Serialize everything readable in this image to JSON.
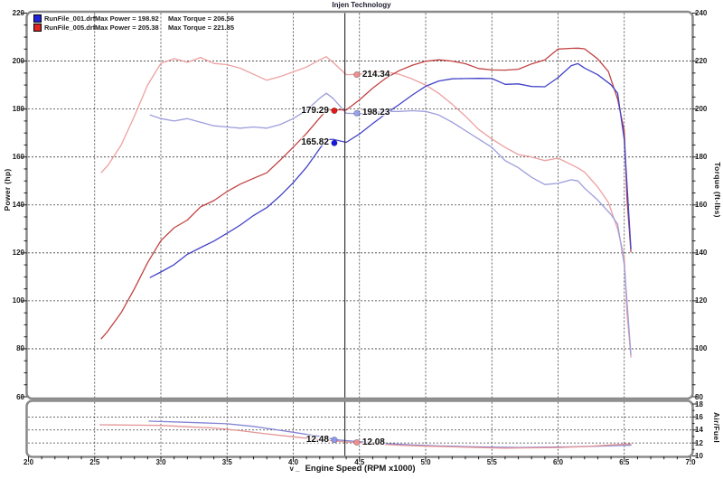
{
  "header": {
    "title": "Injen Technology"
  },
  "legend": {
    "items": [
      {
        "file": "RunFile_001.drf",
        "power_label": "Max Power = 198.92",
        "torque_label": "Max Torque = 206.56",
        "color": "#2222dd"
      },
      {
        "file": "RunFile_005.drf",
        "power_label": "Max Power = 205.38",
        "torque_label": "Max Torque = 221.85",
        "color": "#dd2222"
      }
    ]
  },
  "axes": {
    "power_title": "Power (hp)",
    "torque_title": "Torque (ft-lbs)",
    "af_title": "Air/Fuel",
    "x_title": "Engine Speed (RPM x1000)",
    "x_prefix": "v _",
    "power_ticks": [
      "220",
      "200",
      "180",
      "160",
      "140",
      "120",
      "100",
      "80",
      "60"
    ],
    "torque_ticks": [
      "240",
      "220",
      "200",
      "180",
      "160",
      "140",
      "120",
      "100",
      "80"
    ],
    "af_ticks": [
      "18",
      "16",
      "14",
      "12",
      "10"
    ],
    "x_ticks": [
      "2.0",
      "2.5",
      "3.0",
      "3.5",
      "4.0",
      "4.5",
      "5.0",
      "5.5",
      "6.0",
      "6.5",
      "7.0"
    ]
  },
  "cursor": {
    "rpm": 4.39
  },
  "annotations": [
    {
      "label": "214.34",
      "axis": "torque",
      "value": 214.34,
      "dot_rpm": 4.48,
      "side": "right",
      "dot_color": "#f09090"
    },
    {
      "label": "198.23",
      "axis": "torque",
      "value": 198.23,
      "dot_rpm": 4.48,
      "side": "right",
      "dot_color": "#98a2ef"
    },
    {
      "label": "179.29",
      "axis": "power",
      "value": 179.29,
      "dot_rpm": 4.31,
      "side": "left",
      "dot_color": "#e01818"
    },
    {
      "label": "165.82",
      "axis": "power",
      "value": 165.82,
      "dot_rpm": 4.31,
      "side": "left",
      "dot_color": "#1818e0"
    },
    {
      "label": "12.48",
      "axis": "af",
      "value": 12.48,
      "dot_rpm": 4.31,
      "side": "left",
      "dot_color": "#8f99ea"
    },
    {
      "label": "12.08",
      "axis": "af",
      "value": 12.08,
      "dot_rpm": 4.48,
      "side": "right",
      "dot_color": "#ef9090"
    }
  ],
  "chart_data": [
    {
      "type": "line",
      "title": "Injen Technology",
      "xlabel": "Engine Speed (RPM x1000)",
      "ylabel_left": "Power (hp)",
      "ylabel_right": "Torque (ft-lbs)",
      "xlim": [
        2.0,
        7.0
      ],
      "ylim_left": [
        60,
        220
      ],
      "ylim_right": [
        80,
        240
      ],
      "grid": true,
      "legend_position": "top-left",
      "series": [
        {
          "name": "RunFile_005.drf Torque",
          "axis": "torque",
          "color": "#eda0a0",
          "x": [
            2.55,
            2.6,
            2.7,
            2.8,
            2.9,
            3.0,
            3.1,
            3.2,
            3.3,
            3.4,
            3.5,
            3.6,
            3.7,
            3.8,
            3.9,
            4.0,
            4.1,
            4.2,
            4.25,
            4.3,
            4.4,
            4.5,
            4.6,
            4.7,
            4.8,
            4.9,
            5.0,
            5.1,
            5.2,
            5.3,
            5.4,
            5.5,
            5.6,
            5.7,
            5.8,
            5.9,
            6.0,
            6.1,
            6.15,
            6.2,
            6.3,
            6.38,
            6.45,
            6.5,
            6.52,
            6.55
          ],
          "y": [
            173.5,
            176.5,
            185,
            197,
            210,
            219,
            221,
            219.5,
            221.5,
            219,
            218.5,
            217,
            214.5,
            212,
            213.5,
            215.5,
            217.5,
            220.5,
            221.85,
            219.5,
            214.34,
            214.5,
            215.5,
            215.5,
            214.5,
            212.5,
            210,
            206.5,
            202,
            197,
            191.5,
            187.5,
            184,
            181,
            180,
            178.5,
            179.5,
            176.8,
            175.4,
            173.7,
            167.5,
            161,
            150,
            138,
            115,
            96.5
          ]
        },
        {
          "name": "RunFile_005.drf Power",
          "axis": "power",
          "color": "#c24343",
          "x": [
            2.55,
            2.6,
            2.7,
            2.8,
            2.9,
            3.0,
            3.1,
            3.2,
            3.3,
            3.4,
            3.5,
            3.6,
            3.7,
            3.8,
            3.9,
            4.0,
            4.1,
            4.2,
            4.25,
            4.3,
            4.4,
            4.5,
            4.6,
            4.7,
            4.8,
            4.9,
            5.0,
            5.1,
            5.2,
            5.3,
            5.4,
            5.5,
            5.6,
            5.7,
            5.8,
            5.9,
            6.0,
            6.1,
            6.15,
            6.2,
            6.3,
            6.38,
            6.45,
            6.5,
            6.52,
            6.55
          ],
          "y": [
            84.2,
            87.4,
            95.1,
            105.0,
            115.9,
            125.1,
            130.5,
            133.7,
            139.2,
            141.8,
            145.6,
            148.7,
            151.1,
            153.4,
            158.6,
            164.1,
            169.8,
            176.3,
            179.5,
            179.7,
            179.6,
            183.8,
            188.7,
            192.9,
            196.0,
            198.3,
            199.9,
            200.5,
            200.0,
            198.9,
            196.9,
            196.3,
            196.2,
            196.6,
            198.8,
            200.5,
            205.0,
            205.3,
            205.38,
            205.1,
            200.9,
            195.6,
            184.1,
            170.8,
            142.8,
            120.4
          ]
        },
        {
          "name": "RunFile_001.drf Torque",
          "axis": "torque",
          "color": "#9d9ddd",
          "x": [
            2.92,
            3.0,
            3.1,
            3.2,
            3.3,
            3.4,
            3.5,
            3.6,
            3.7,
            3.8,
            3.9,
            4.0,
            4.1,
            4.2,
            4.25,
            4.3,
            4.4,
            4.5,
            4.6,
            4.7,
            4.8,
            4.9,
            5.0,
            5.1,
            5.2,
            5.3,
            5.4,
            5.5,
            5.6,
            5.7,
            5.8,
            5.9,
            6.0,
            6.1,
            6.15,
            6.2,
            6.3,
            6.4,
            6.45,
            6.5,
            6.55
          ],
          "y": [
            197.5,
            196,
            195,
            196,
            194.5,
            193,
            192.5,
            192,
            192.5,
            192,
            193.5,
            196,
            199.5,
            204.5,
            206.56,
            204.5,
            198.23,
            198,
            198.5,
            199,
            199,
            199.3,
            199,
            197.5,
            194.5,
            191,
            187.5,
            184,
            178.5,
            175.5,
            171.5,
            168.5,
            169,
            170.5,
            170,
            167,
            162,
            156,
            152,
            135,
            97.5
          ]
        },
        {
          "name": "RunFile_001.drf Power",
          "axis": "power",
          "color": "#4343c8",
          "x": [
            2.92,
            3.0,
            3.1,
            3.2,
            3.3,
            3.4,
            3.5,
            3.6,
            3.7,
            3.8,
            3.9,
            4.0,
            4.1,
            4.2,
            4.25,
            4.3,
            4.4,
            4.5,
            4.6,
            4.7,
            4.8,
            4.9,
            5.0,
            5.1,
            5.2,
            5.3,
            5.4,
            5.5,
            5.6,
            5.7,
            5.8,
            5.9,
            6.0,
            6.1,
            6.15,
            6.2,
            6.3,
            6.4,
            6.45,
            6.5,
            6.55
          ],
          "y": [
            109.8,
            112.0,
            115.1,
            119.4,
            122.2,
            124.9,
            128.2,
            131.6,
            135.6,
            138.9,
            143.7,
            149.3,
            155.7,
            163.5,
            167.2,
            167.4,
            166.1,
            169.6,
            173.9,
            178.1,
            181.9,
            185.9,
            189.5,
            191.7,
            192.6,
            192.7,
            192.8,
            192.7,
            190.3,
            190.5,
            189.4,
            189.3,
            193.1,
            198.1,
            198.92,
            197.1,
            194.3,
            190.1,
            186.6,
            167.1,
            121.6
          ]
        }
      ]
    },
    {
      "type": "line",
      "title": "Air/Fuel",
      "xlim": [
        2.0,
        7.0
      ],
      "ylim": [
        10,
        18
      ],
      "grid": true,
      "series": [
        {
          "name": "RunFile_001.drf Air/Fuel",
          "axis": "af",
          "color": "#8585d5",
          "x": [
            2.91,
            3.1,
            3.3,
            3.5,
            3.7,
            3.9,
            4.0,
            4.2,
            4.33,
            4.5,
            4.7,
            4.9,
            5.1,
            5.3,
            5.5,
            5.7,
            5.9,
            6.1,
            6.3,
            6.45,
            6.55
          ],
          "y": [
            15.35,
            15.25,
            15.1,
            14.95,
            14.55,
            13.95,
            13.65,
            13.0,
            12.48,
            12.2,
            11.9,
            11.7,
            11.55,
            11.45,
            11.35,
            11.3,
            11.35,
            11.4,
            11.5,
            11.6,
            11.65
          ]
        },
        {
          "name": "RunFile_005.drf Air/Fuel",
          "axis": "af",
          "color": "#e59595",
          "x": [
            2.54,
            2.8,
            3.0,
            3.2,
            3.4,
            3.6,
            3.8,
            4.0,
            4.2,
            4.4,
            4.48,
            4.6,
            4.8,
            5.0,
            5.2,
            5.4,
            5.6,
            5.8,
            6.0,
            6.2,
            6.4,
            6.55
          ],
          "y": [
            14.8,
            14.75,
            14.7,
            14.5,
            14.3,
            13.9,
            13.4,
            12.95,
            12.5,
            12.15,
            12.08,
            11.9,
            11.65,
            11.5,
            11.4,
            11.3,
            11.2,
            11.25,
            11.3,
            11.45,
            11.7,
            11.85
          ]
        }
      ]
    }
  ],
  "colors": {
    "frame": "#8a8a8a",
    "grid": "#3c3c3c",
    "cursor": "#111111",
    "background": "#ffffff"
  }
}
